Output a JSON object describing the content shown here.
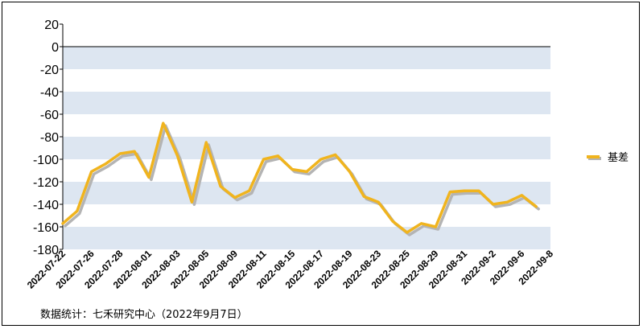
{
  "chart_data": {
    "type": "line",
    "title": "",
    "xlabel": "",
    "ylabel": "",
    "ylim": [
      -180,
      20
    ],
    "yticks": [
      20,
      0,
      -20,
      -40,
      -60,
      -80,
      -100,
      -120,
      -140,
      -160,
      -180
    ],
    "grid": "alternating horizontal bands",
    "legend_position": "right",
    "x_tick_labels": [
      "2022-07-22",
      "2022-07-26",
      "2022-07-28",
      "2022-08-01",
      "2022-08-03",
      "2022-08-05",
      "2022-08-09",
      "2022-08-11",
      "2022-08-15",
      "2022-08-17",
      "2022-08-19",
      "2022-08-23",
      "2022-08-25",
      "2022-08-29",
      "2022-08-31",
      "2022-09-2",
      "2022-09-6",
      "2022-09-8"
    ],
    "x": [
      "2022-07-22",
      "2022-07-25",
      "2022-07-26",
      "2022-07-27",
      "2022-07-28",
      "2022-07-29",
      "2022-08-01",
      "2022-08-02",
      "2022-08-03",
      "2022-08-04",
      "2022-08-05",
      "2022-08-08",
      "2022-08-09",
      "2022-08-10",
      "2022-08-11",
      "2022-08-12",
      "2022-08-15",
      "2022-08-16",
      "2022-08-17",
      "2022-08-18",
      "2022-08-19",
      "2022-08-22",
      "2022-08-23",
      "2022-08-24",
      "2022-08-25",
      "2022-08-26",
      "2022-08-29",
      "2022-08-30",
      "2022-08-31",
      "2022-09-1",
      "2022-09-2",
      "2022-09-5",
      "2022-09-6",
      "2022-09-7"
    ],
    "series": [
      {
        "name": "基差",
        "color": "#f0b41e",
        "shadow_color": "#b4b4b4",
        "values": [
          -157,
          -146,
          -111,
          -104,
          -95,
          -93,
          -116,
          -68,
          -97,
          -138,
          -85,
          -124,
          -134,
          -128,
          -100,
          -97,
          -109,
          -111,
          -100,
          -96,
          -111,
          -133,
          -138,
          -155,
          -165,
          -157,
          -160,
          -129,
          -128,
          -128,
          -140,
          -138,
          -132,
          -142
        ]
      }
    ]
  },
  "source_note": "数据统计：七禾研究中心（2022年9月7日）"
}
